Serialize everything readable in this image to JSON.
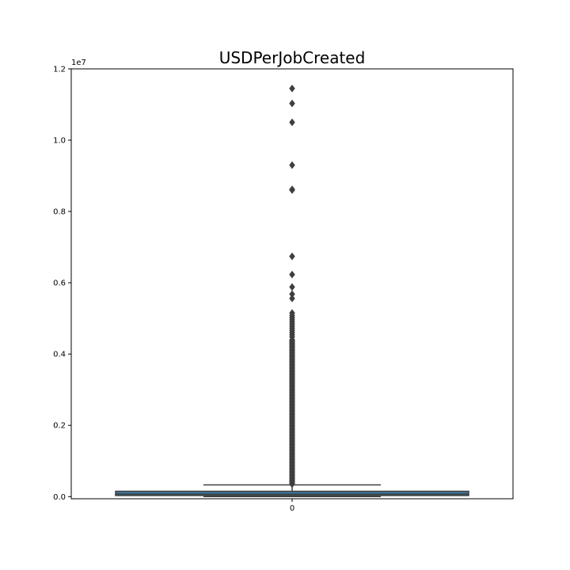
{
  "chart_data": {
    "type": "box",
    "title": "USDPerJobCreated",
    "xlabel": "",
    "ylabel": "",
    "offset_text": "1e7",
    "categories": [
      "0"
    ],
    "ylim": [
      -60000,
      12000000
    ],
    "yticks": [
      0,
      2000000,
      4000000,
      6000000,
      8000000,
      10000000,
      12000000
    ],
    "ytick_labels": [
      "0.0",
      "0.2",
      "0.4",
      "0.6",
      "0.8",
      "1.0",
      "1.2"
    ],
    "grid": false,
    "box": {
      "whisker_low": 0,
      "q1": 30000,
      "median": 70000,
      "q3": 150000,
      "whisker_high": 330000,
      "fill_color": "#3a78a0",
      "line_color": "#3f3f3f"
    },
    "outliers": [
      11450000,
      11030000,
      10500000,
      9300000,
      8620000,
      8600000,
      6740000,
      6230000,
      5880000,
      5680000,
      5560000,
      5150000,
      5080000,
      5020000,
      4960000,
      4900000,
      4840000,
      4780000,
      4720000,
      4660000,
      4600000,
      4540000,
      4480000
    ],
    "outlier_band": {
      "from": 350000,
      "to": 4420000,
      "step": 30000
    },
    "outlier_color": "#3f3f3f"
  }
}
